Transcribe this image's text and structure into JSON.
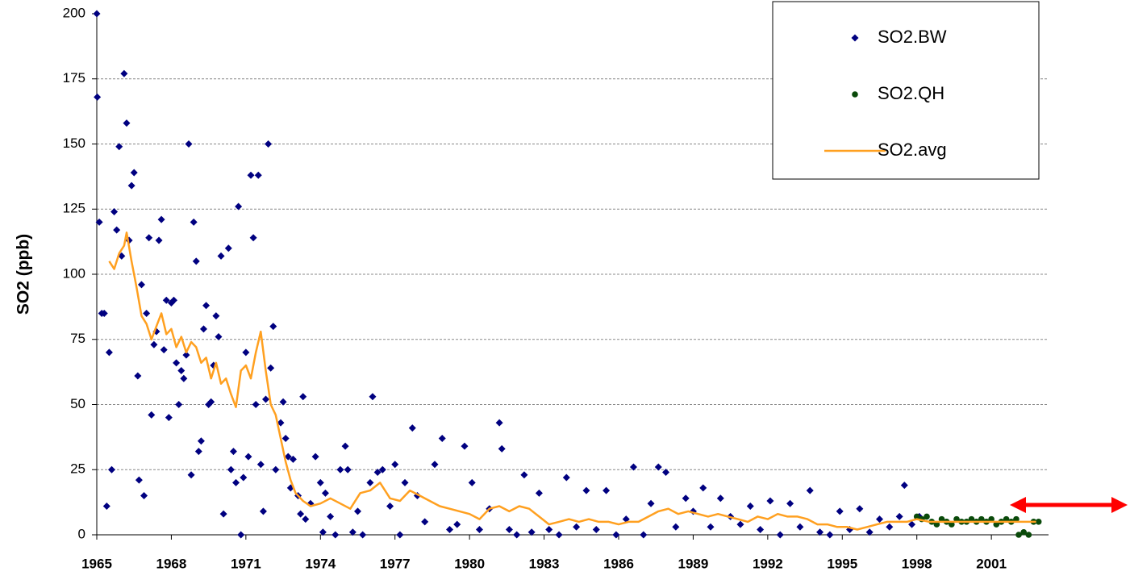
{
  "chart_data": {
    "type": "scatter",
    "y_label": "SO2 (ppb)",
    "xlim": [
      1965,
      2003.3
    ],
    "xticks": [
      1965,
      1968,
      1971,
      1974,
      1977,
      1980,
      1983,
      1986,
      1989,
      1992,
      1995,
      1998,
      2001
    ],
    "ylim": [
      0,
      200
    ],
    "yticks": [
      0,
      25,
      50,
      75,
      100,
      125,
      150,
      175,
      200
    ],
    "grid": true,
    "legend": "top-right",
    "series": [
      {
        "name": "SO2.BW",
        "color": "#000080",
        "marker": "diamond",
        "x": [
          1965.0,
          1965.02,
          1965.1,
          1965.2,
          1965.3,
          1965.4,
          1965.5,
          1965.6,
          1965.7,
          1965.8,
          1965.9,
          1966.0,
          1966.1,
          1966.2,
          1966.3,
          1966.4,
          1966.5,
          1966.65,
          1966.7,
          1966.8,
          1966.9,
          1967.0,
          1967.1,
          1967.2,
          1967.3,
          1967.4,
          1967.5,
          1967.6,
          1967.7,
          1967.8,
          1967.9,
          1968.0,
          1968.1,
          1968.2,
          1968.3,
          1968.4,
          1968.5,
          1968.6,
          1968.7,
          1968.8,
          1968.9,
          1969.0,
          1969.1,
          1969.2,
          1969.3,
          1969.4,
          1969.5,
          1969.6,
          1969.7,
          1969.8,
          1969.9,
          1970.0,
          1970.1,
          1970.3,
          1970.4,
          1970.5,
          1970.6,
          1970.7,
          1970.8,
          1970.9,
          1971.0,
          1971.1,
          1971.2,
          1971.3,
          1971.4,
          1971.5,
          1971.6,
          1971.7,
          1971.8,
          1971.9,
          1972.0,
          1972.1,
          1972.2,
          1972.4,
          1972.5,
          1972.6,
          1972.7,
          1972.8,
          1972.9,
          1973.1,
          1973.2,
          1973.3,
          1973.4,
          1973.6,
          1973.8,
          1974.0,
          1974.1,
          1974.2,
          1974.4,
          1974.6,
          1974.8,
          1975.0,
          1975.1,
          1975.3,
          1975.5,
          1975.7,
          1976.0,
          1976.1,
          1976.3,
          1976.5,
          1976.8,
          1977.0,
          1977.2,
          1977.4,
          1977.7,
          1977.9,
          1978.2,
          1978.6,
          1978.9,
          1979.2,
          1979.5,
          1979.8,
          1980.1,
          1980.4,
          1980.8,
          1981.2,
          1981.3,
          1981.6,
          1981.9,
          1982.2,
          1982.5,
          1982.8,
          1983.2,
          1983.6,
          1983.9,
          1984.3,
          1984.7,
          1985.1,
          1985.5,
          1985.9,
          1986.3,
          1986.6,
          1987.0,
          1987.3,
          1987.6,
          1987.9,
          1988.3,
          1988.7,
          1989.0,
          1989.4,
          1989.7,
          1990.1,
          1990.5,
          1990.9,
          1991.3,
          1991.7,
          1992.1,
          1992.5,
          1992.9,
          1993.3,
          1993.7,
          1994.1,
          1994.5,
          1994.9,
          1995.3,
          1995.7,
          1996.1,
          1996.5,
          1996.9,
          1997.3,
          1997.5,
          1997.8,
          1998.1
        ],
        "values": [
          200,
          168,
          120,
          85,
          85,
          11,
          70,
          25,
          124,
          117,
          149,
          107,
          177,
          158,
          113,
          134,
          139,
          61,
          21,
          96,
          15,
          85,
          114,
          46,
          73,
          78,
          113,
          121,
          71,
          90,
          45,
          89,
          90,
          66,
          50,
          63,
          60,
          69,
          150,
          23,
          120,
          105,
          32,
          36,
          79,
          88,
          50,
          51,
          65,
          84,
          76,
          107,
          8,
          110,
          25,
          32,
          20,
          126,
          0,
          22,
          70,
          30,
          138,
          114,
          50,
          138,
          27,
          9,
          52,
          150,
          64,
          80,
          25,
          43,
          51,
          37,
          30,
          18,
          29,
          15,
          8,
          53,
          6,
          12,
          30,
          20,
          1,
          16,
          7,
          0,
          25,
          34,
          25,
          1,
          9,
          0,
          20,
          53,
          24,
          25,
          11,
          27,
          0,
          20,
          41,
          15,
          5,
          27,
          37,
          2,
          4,
          34,
          20,
          2,
          10,
          43,
          33,
          2,
          0,
          23,
          1,
          16,
          2,
          0,
          22,
          3,
          17,
          2,
          17,
          0,
          6,
          26,
          0,
          12,
          26,
          24,
          3,
          14,
          9,
          18,
          3,
          14,
          7,
          4,
          11,
          2,
          13,
          0,
          12,
          3,
          17,
          1,
          0,
          9,
          2,
          10,
          1,
          6,
          3,
          7,
          19,
          4,
          7
        ]
      },
      {
        "name": "SO2.QH",
        "color": "#0a4a0a",
        "marker": "circle",
        "x": [
          1998.0,
          1998.2,
          1998.4,
          1998.6,
          1998.8,
          1999.0,
          1999.2,
          1999.4,
          1999.6,
          1999.8,
          2000.0,
          2000.2,
          2000.4,
          2000.6,
          2000.8,
          2001.0,
          2001.2,
          2001.4,
          2001.6,
          2001.8,
          2002.0,
          2002.1,
          2002.3,
          2002.5,
          2002.7,
          2002.9
        ],
        "values": [
          7,
          6,
          7,
          5,
          4,
          6,
          5,
          4,
          6,
          5,
          5,
          6,
          5,
          6,
          5,
          6,
          4,
          5,
          6,
          5,
          6,
          0,
          1,
          0,
          5,
          5
        ]
      },
      {
        "name": "SO2.avg",
        "color": "#ffa020",
        "marker": "line",
        "x": [
          1965.5,
          1965.7,
          1965.9,
          1966.1,
          1966.2,
          1966.4,
          1966.6,
          1966.8,
          1967.0,
          1967.2,
          1967.4,
          1967.6,
          1967.8,
          1968.0,
          1968.2,
          1968.4,
          1968.6,
          1968.8,
          1969.0,
          1969.2,
          1969.4,
          1969.6,
          1969.8,
          1970.0,
          1970.2,
          1970.4,
          1970.6,
          1970.8,
          1971.0,
          1971.2,
          1971.4,
          1971.6,
          1971.8,
          1972.0,
          1972.2,
          1972.4,
          1972.6,
          1972.8,
          1973.0,
          1973.3,
          1973.6,
          1974.0,
          1974.4,
          1974.8,
          1975.2,
          1975.6,
          1976.0,
          1976.4,
          1976.8,
          1977.2,
          1977.6,
          1978.0,
          1978.4,
          1978.8,
          1979.2,
          1979.6,
          1980.0,
          1980.4,
          1980.8,
          1981.2,
          1981.6,
          1982.0,
          1982.4,
          1982.8,
          1983.2,
          1983.6,
          1984.0,
          1984.4,
          1984.8,
          1985.2,
          1985.6,
          1986.0,
          1986.4,
          1986.8,
          1987.2,
          1987.6,
          1988.0,
          1988.4,
          1988.8,
          1989.2,
          1989.6,
          1990.0,
          1990.4,
          1990.8,
          1991.2,
          1991.6,
          1992.0,
          1992.4,
          1992.8,
          1993.2,
          1993.6,
          1994.0,
          1994.4,
          1994.8,
          1995.2,
          1995.6,
          1996.0,
          1996.4,
          1996.8,
          1997.2,
          1997.6,
          1998.0,
          1998.5,
          1999.0,
          1999.5,
          2000.0,
          2000.5,
          2001.0,
          2001.5,
          2002.0,
          2002.5,
          2002.8
        ],
        "values": [
          105,
          102,
          108,
          111,
          116,
          105,
          95,
          84,
          81,
          75,
          80,
          85,
          77,
          79,
          72,
          76,
          70,
          74,
          72,
          66,
          68,
          60,
          66,
          58,
          60,
          54,
          49,
          63,
          65,
          60,
          70,
          78,
          63,
          50,
          46,
          37,
          28,
          21,
          16,
          13,
          11,
          12,
          14,
          12,
          10,
          16,
          17,
          20,
          14,
          13,
          17,
          15,
          13,
          11,
          10,
          9,
          8,
          6,
          10,
          11,
          9,
          11,
          10,
          7,
          4,
          5,
          6,
          5,
          6,
          5,
          5,
          4,
          5,
          5,
          7,
          9,
          10,
          8,
          9,
          8,
          7,
          8,
          7,
          6,
          5,
          7,
          6,
          8,
          7,
          7,
          6,
          4,
          4,
          3,
          3,
          2,
          3,
          4,
          5,
          5,
          5,
          6,
          5,
          5,
          5,
          5,
          5,
          5,
          5,
          5,
          5,
          5
        ]
      }
    ]
  }
}
